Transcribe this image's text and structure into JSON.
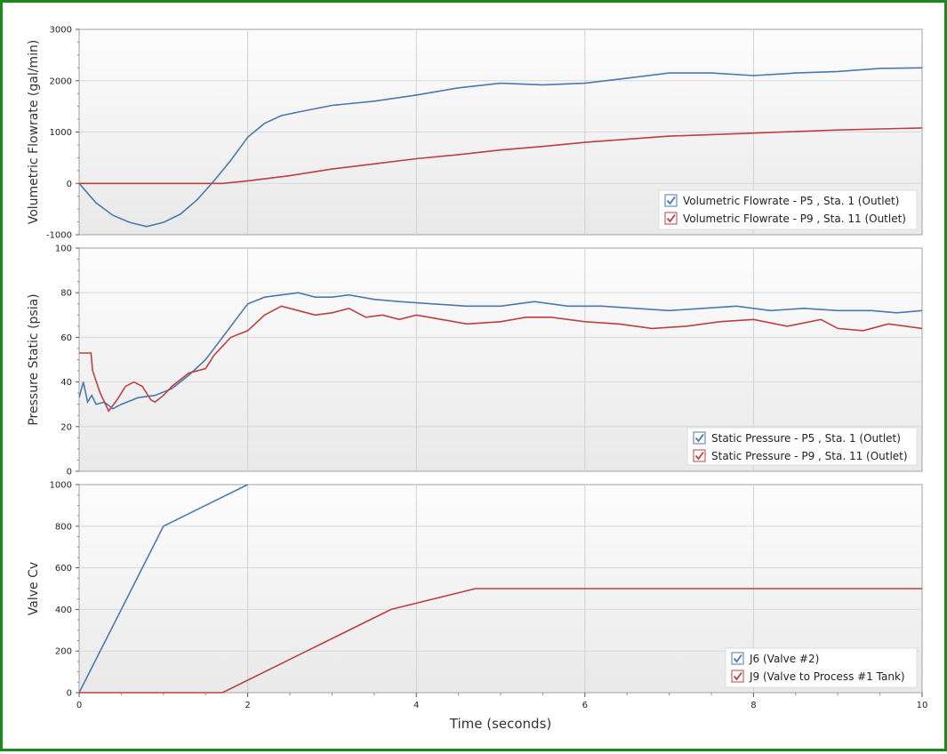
{
  "colors": {
    "blue": "#4a78b0",
    "red": "#bc4040",
    "frame": "#1a8a1a"
  },
  "xlabel": "Time (seconds)",
  "xlim": [
    0,
    10
  ],
  "xticks": [
    0,
    2,
    4,
    6,
    8,
    10
  ],
  "chart_data": [
    {
      "type": "line",
      "ylabel": "Volumetric Flowrate (gal/min)",
      "ylim": [
        -1000,
        3000
      ],
      "yticks": [
        -1000,
        0,
        1000,
        2000,
        3000
      ],
      "grid": true,
      "legend": "bottom-right",
      "series": [
        {
          "name": "Volumetric Flowrate - P5 , Sta. 1 (Outlet)",
          "color": "#4a78b0",
          "x": [
            0,
            0.2,
            0.4,
            0.6,
            0.8,
            1.0,
            1.2,
            1.4,
            1.6,
            1.8,
            2.0,
            2.2,
            2.4,
            2.6,
            3.0,
            3.5,
            4.0,
            4.5,
            5.0,
            5.5,
            6.0,
            6.5,
            7.0,
            7.5,
            8.0,
            8.5,
            9.0,
            9.5,
            10.0
          ],
          "y": [
            0,
            -380,
            -620,
            -760,
            -840,
            -760,
            -600,
            -320,
            50,
            450,
            900,
            1170,
            1320,
            1390,
            1520,
            1600,
            1720,
            1860,
            1950,
            1920,
            1950,
            2050,
            2150,
            2150,
            2100,
            2150,
            2180,
            2240,
            2250
          ]
        },
        {
          "name": "Volumetric Flowrate - P9 , Sta. 11 (Outlet)",
          "color": "#bc4040",
          "x": [
            0,
            1.7,
            2.0,
            2.5,
            3.0,
            3.5,
            4.0,
            4.5,
            5.0,
            5.5,
            6.0,
            6.5,
            7.0,
            7.5,
            8.0,
            8.5,
            9.0,
            9.5,
            10.0
          ],
          "y": [
            0,
            0,
            50,
            150,
            280,
            380,
            480,
            560,
            650,
            720,
            800,
            860,
            920,
            950,
            980,
            1010,
            1040,
            1060,
            1080
          ]
        }
      ]
    },
    {
      "type": "line",
      "ylabel": "Pressure Static (psia)",
      "ylim": [
        0,
        100
      ],
      "yticks": [
        0,
        20,
        40,
        60,
        80,
        100
      ],
      "grid": true,
      "legend": "bottom-right",
      "series": [
        {
          "name": "Static Pressure - P5 , Sta. 1 (Outlet)",
          "color": "#4a78b0",
          "x": [
            0,
            0.05,
            0.1,
            0.15,
            0.2,
            0.3,
            0.4,
            0.5,
            0.7,
            0.9,
            1.1,
            1.3,
            1.5,
            1.7,
            1.9,
            2.0,
            2.2,
            2.4,
            2.6,
            2.8,
            3.0,
            3.2,
            3.5,
            3.8,
            4.2,
            4.6,
            5.0,
            5.4,
            5.8,
            6.2,
            6.6,
            7.0,
            7.4,
            7.8,
            8.2,
            8.6,
            9.0,
            9.4,
            9.7,
            10.0
          ],
          "y": [
            33,
            40,
            31,
            34,
            30,
            31,
            28,
            30,
            33,
            34,
            37,
            43,
            50,
            60,
            70,
            75,
            78,
            79,
            80,
            78,
            78,
            79,
            77,
            76,
            75,
            74,
            74,
            76,
            74,
            74,
            73,
            72,
            73,
            74,
            72,
            73,
            72,
            72,
            71,
            72
          ]
        },
        {
          "name": "Static Pressure - P9 , Sta. 11 (Outlet)",
          "color": "#bc4040",
          "x": [
            0,
            0.14,
            0.16,
            0.25,
            0.35,
            0.45,
            0.55,
            0.65,
            0.75,
            0.85,
            0.9,
            1.0,
            1.1,
            1.3,
            1.5,
            1.6,
            1.8,
            2.0,
            2.2,
            2.4,
            2.6,
            2.8,
            3.0,
            3.2,
            3.4,
            3.6,
            3.8,
            4.0,
            4.3,
            4.6,
            5.0,
            5.3,
            5.6,
            6.0,
            6.4,
            6.8,
            7.2,
            7.6,
            8.0,
            8.4,
            8.8,
            9.0,
            9.3,
            9.6,
            10.0
          ],
          "y": [
            53,
            53,
            45,
            35,
            27,
            32,
            38,
            40,
            38,
            32,
            31,
            34,
            38,
            44,
            46,
            52,
            60,
            63,
            70,
            74,
            72,
            70,
            71,
            73,
            69,
            70,
            68,
            70,
            68,
            66,
            67,
            69,
            69,
            67,
            66,
            64,
            65,
            67,
            68,
            65,
            68,
            64,
            63,
            66,
            64
          ]
        }
      ]
    },
    {
      "type": "line",
      "ylabel": "Valve Cv",
      "ylim": [
        0,
        1000
      ],
      "yticks": [
        0,
        200,
        400,
        600,
        800,
        1000
      ],
      "grid": true,
      "legend": "bottom-right",
      "series": [
        {
          "name": "J6 (Valve #2)",
          "color": "#4a78b0",
          "x": [
            0,
            1.0,
            2.0
          ],
          "y": [
            0,
            800,
            1000
          ]
        },
        {
          "name": "J9 (Valve to Process #1 Tank)",
          "color": "#bc4040",
          "x": [
            0,
            1.7,
            2.7,
            3.7,
            4.7,
            10.0
          ],
          "y": [
            0,
            0,
            200,
            400,
            500,
            500
          ]
        }
      ]
    }
  ]
}
